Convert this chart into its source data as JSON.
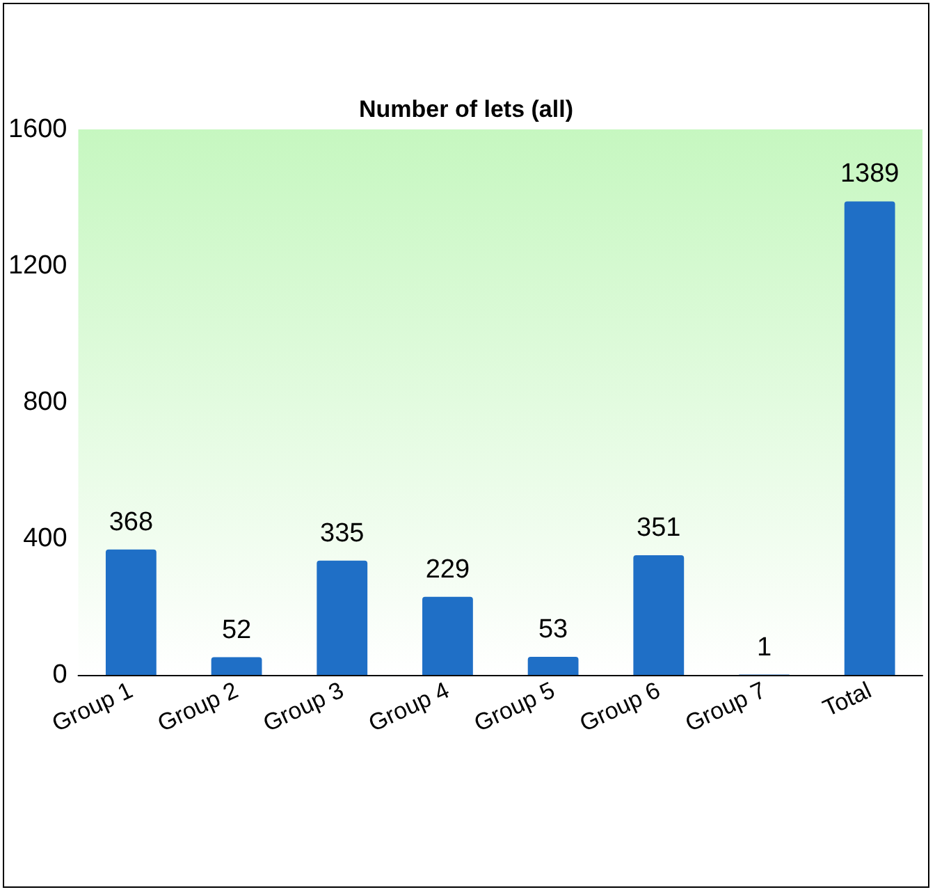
{
  "chart_data": {
    "type": "bar",
    "title": "Number of lets (all)",
    "categories": [
      "Group 1",
      "Group 2",
      "Group 3",
      "Group 4",
      "Group 5",
      "Group 6",
      "Group 7",
      "Total"
    ],
    "values": [
      368,
      52,
      335,
      229,
      53,
      351,
      1,
      1389
    ],
    "color": "#1f6fc6",
    "ylim": [
      0,
      1600
    ],
    "yticks": [
      0,
      400,
      800,
      1200,
      1600
    ],
    "grid": false,
    "data_labels": true
  }
}
